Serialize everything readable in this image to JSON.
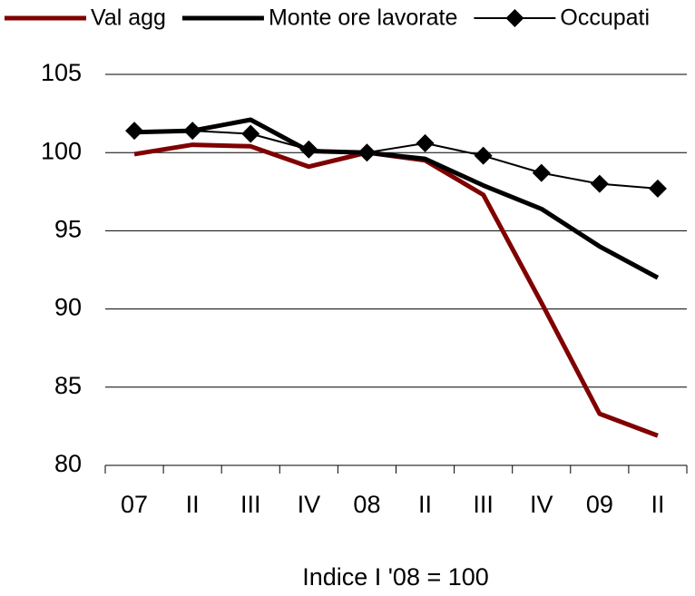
{
  "chart_data": {
    "type": "line",
    "categories": [
      "07",
      "II",
      "III",
      "IV",
      "08",
      "II",
      "III",
      "IV",
      "09",
      "II"
    ],
    "series": [
      {
        "name": "Val agg",
        "color": "#800000",
        "values": [
          99.9,
          100.5,
          100.4,
          99.1,
          100.0,
          99.5,
          97.3,
          90.4,
          83.3,
          81.9
        ]
      },
      {
        "name": "Monte ore lavorate",
        "color": "#000000",
        "values": [
          101.3,
          101.4,
          102.1,
          100.1,
          100.0,
          99.6,
          97.9,
          96.4,
          94.0,
          92.0
        ]
      },
      {
        "name": "Occupati",
        "color": "#000000",
        "marker": "diamond",
        "values": [
          101.4,
          101.4,
          101.2,
          100.2,
          100.0,
          100.6,
          99.8,
          98.7,
          98.0,
          97.7
        ]
      }
    ],
    "ylim": [
      80,
      105
    ],
    "yticks": [
      80,
      85,
      90,
      95,
      100,
      105
    ],
    "grid": true,
    "xlabel": "Indice I '08 = 100"
  }
}
